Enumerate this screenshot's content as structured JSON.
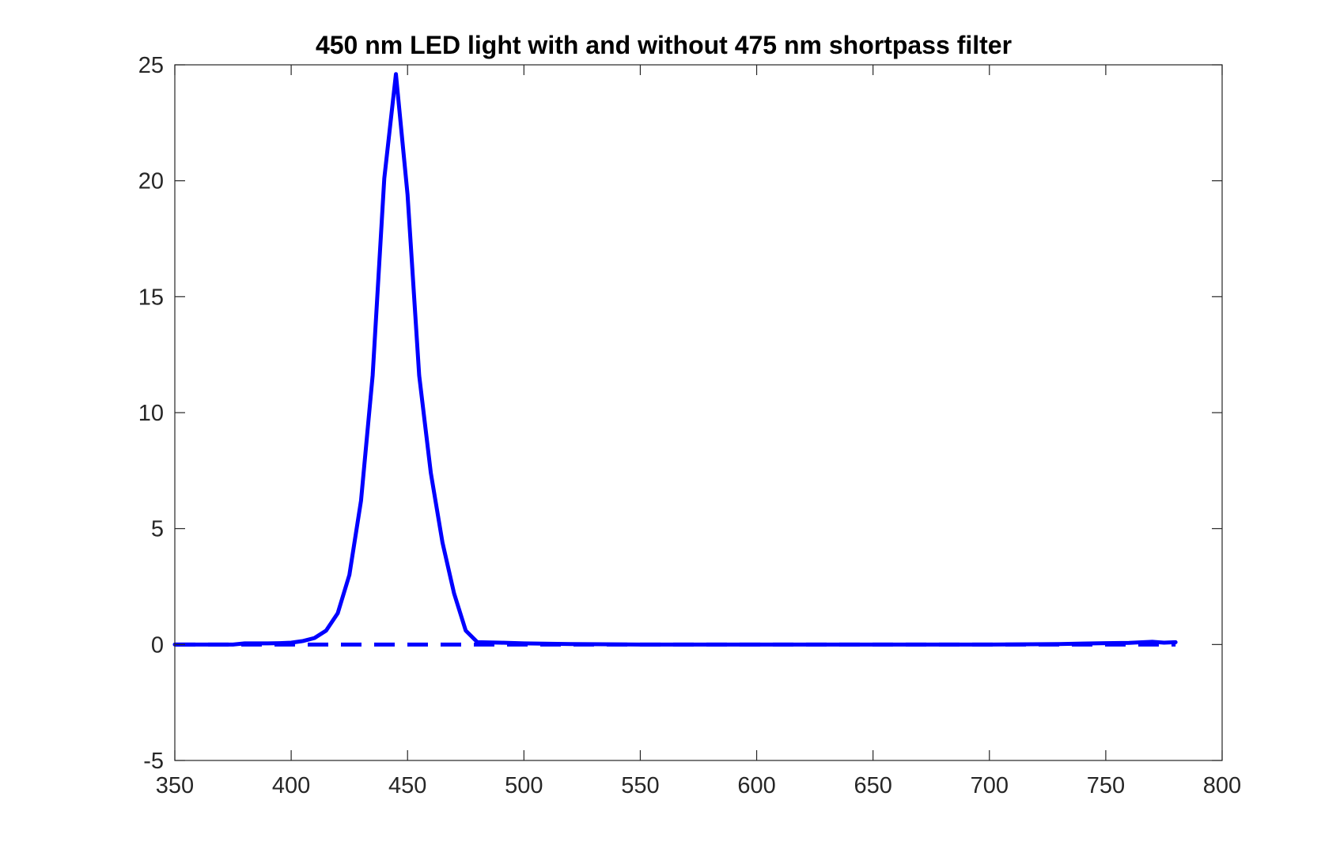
{
  "chart_data": {
    "type": "line",
    "title": "450 nm LED light with and without 475 nm shortpass filter",
    "xlabel": "",
    "ylabel": "",
    "xlim": [
      350,
      800
    ],
    "ylim": [
      -5,
      25
    ],
    "xticks": [
      "350",
      "400",
      "450",
      "500",
      "550",
      "600",
      "650",
      "700",
      "750",
      "800"
    ],
    "yticks": [
      "25",
      "20",
      "15",
      "10",
      "5",
      "0",
      "-5"
    ],
    "grid": false,
    "legend": false,
    "colors": {
      "line": "#0000ff",
      "axes": "#262626",
      "background": "#ffffff"
    },
    "series": [
      {
        "line_style": "solid",
        "x": [
          350,
          360,
          370,
          375,
          380,
          385,
          390,
          395,
          400,
          405,
          410,
          415,
          420,
          425,
          430,
          435,
          440,
          445,
          450,
          455,
          460,
          465,
          470,
          475,
          480,
          490,
          500,
          520,
          550,
          600,
          650,
          700,
          730,
          740,
          750,
          760,
          770,
          775,
          780
        ],
        "y": [
          0,
          0,
          0,
          0,
          0.05,
          0.05,
          0.05,
          0.06,
          0.08,
          0.15,
          0.28,
          0.6,
          1.35,
          3.0,
          6.2,
          11.6,
          20.1,
          24.6,
          19.4,
          11.6,
          7.4,
          4.4,
          2.2,
          0.6,
          0.1,
          0.08,
          0.05,
          0.02,
          0,
          0,
          0,
          0,
          0.02,
          0.04,
          0.06,
          0.07,
          0.12,
          0.08,
          0.1
        ]
      },
      {
        "line_style": "dashed",
        "x": [
          350,
          400,
          450,
          500,
          550,
          600,
          650,
          700,
          750,
          780
        ],
        "y": [
          0,
          0,
          0,
          0,
          0,
          0,
          0,
          0,
          0,
          0
        ]
      }
    ]
  }
}
